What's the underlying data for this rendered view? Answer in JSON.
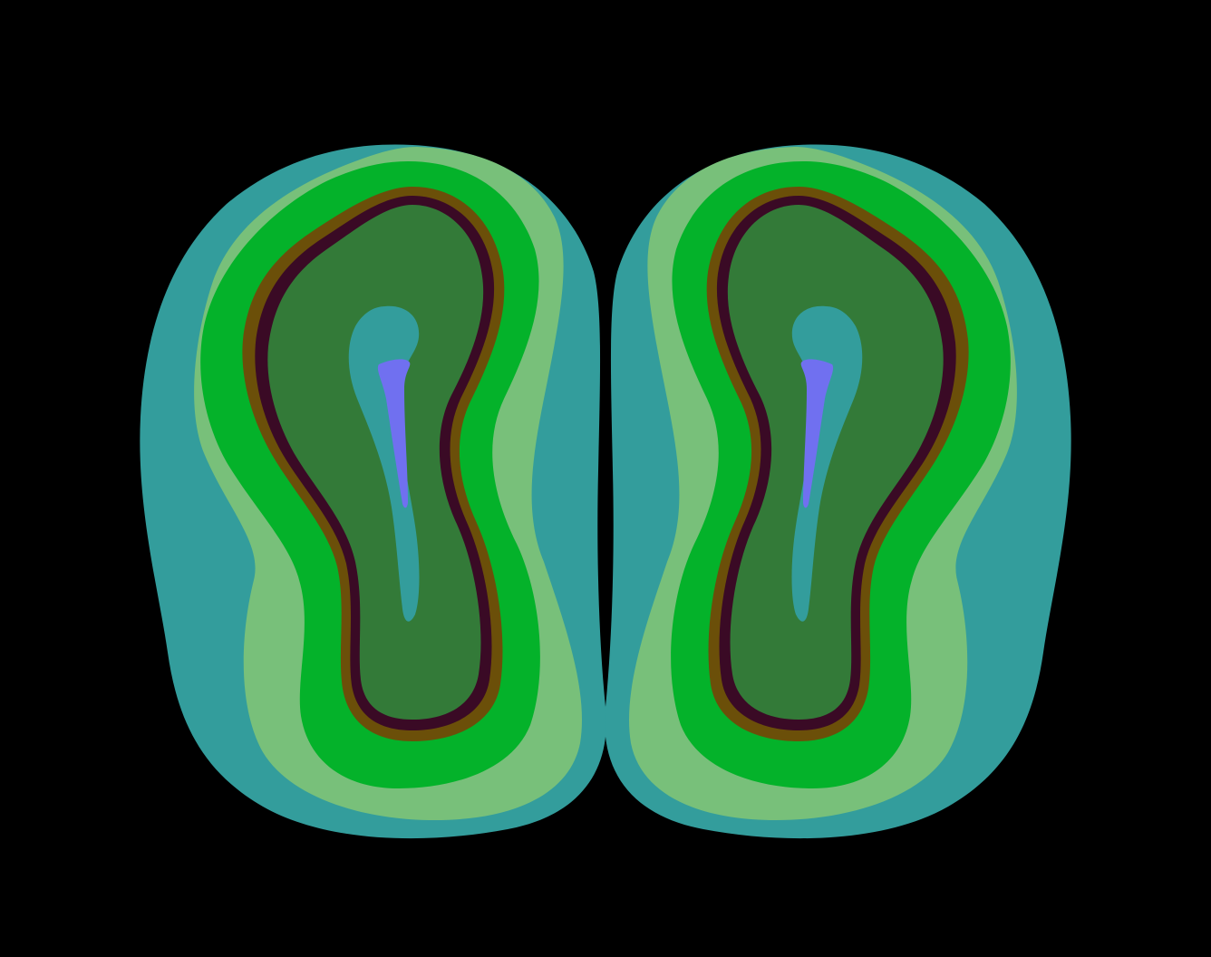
{
  "image": {
    "background_color": "#000000",
    "palette": {
      "outer_teal": "#339d9c",
      "light_green": "#78c07a",
      "bright_green": "#04b22a",
      "olive_rim": "#6b4f09",
      "dark_maroon": "#3a0a25",
      "dark_green": "#337a38",
      "inner_teal": "#339d9c",
      "core_blue": "#7070f0"
    },
    "regions": [
      {
        "name": "left-lobe"
      },
      {
        "name": "right-lobe"
      }
    ]
  }
}
